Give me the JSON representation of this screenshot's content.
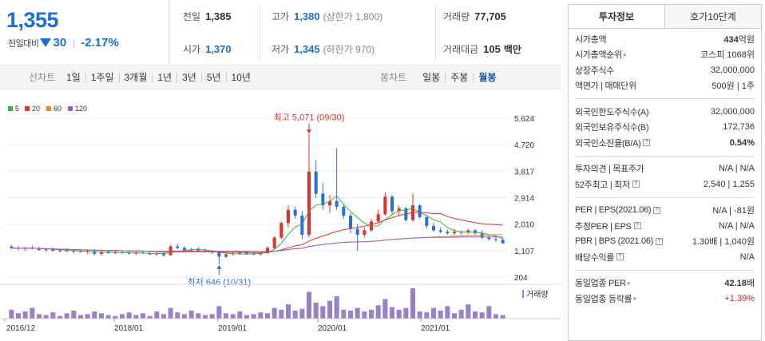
{
  "quote": {
    "price": "1,355",
    "change_label": "전일대비",
    "change": "30",
    "change_pct": "-2.17%",
    "cells": {
      "prev_close": {
        "k": "전일",
        "v": "1,385"
      },
      "high": {
        "k": "고가",
        "v": "1,380",
        "n": "(상한가 1,800)"
      },
      "volume": {
        "k": "거래량",
        "v": "77,705"
      },
      "open": {
        "k": "시가",
        "v": "1,370"
      },
      "low": {
        "k": "저가",
        "v": "1,345",
        "n": "(하한가 970)"
      },
      "amount": {
        "k": "거래대금",
        "v": "105",
        "n": "백만"
      }
    }
  },
  "toolbar": {
    "line_label": "선차트",
    "line_items": [
      "1일",
      "1주일",
      "3개월",
      "1년",
      "3년",
      "5년",
      "10년"
    ],
    "candle_label": "봉차트",
    "candle_items": [
      "일봉",
      "주봉",
      "월봉"
    ],
    "active_candle": 2
  },
  "chart_data": {
    "type": "candlestick",
    "legend": [
      {
        "name": "5",
        "color": "#3cb043"
      },
      {
        "name": "20",
        "color": "#e0302d"
      },
      {
        "name": "60",
        "color": "#f08a1c"
      },
      {
        "name": "120",
        "color": "#9b59d0"
      }
    ],
    "y_ticks": [
      "5,624",
      "4,720",
      "3,817",
      "2,914",
      "2,010",
      "1,107",
      "204"
    ],
    "ylim": [
      204,
      5624
    ],
    "x_ticks": [
      "2016/12",
      "2018/01",
      "2019/01",
      "2020/01",
      "2021/01"
    ],
    "annotations": {
      "high": "최고 5,071 (09/30)",
      "low": "최저 646 (10/31)"
    },
    "volume_label": "거래량",
    "up_color": "#e0302d",
    "down_color": "#2a6fd6",
    "candles": [
      [
        1250,
        1300,
        1150,
        1200
      ],
      [
        1200,
        1260,
        1120,
        1170
      ],
      [
        1170,
        1230,
        1100,
        1210
      ],
      [
        1210,
        1280,
        1150,
        1180
      ],
      [
        1180,
        1240,
        1100,
        1130
      ],
      [
        1130,
        1190,
        1060,
        1150
      ],
      [
        1150,
        1220,
        1080,
        1100
      ],
      [
        1100,
        1160,
        1040,
        1120
      ],
      [
        1120,
        1190,
        1060,
        1080
      ],
      [
        1080,
        1140,
        1020,
        1100
      ],
      [
        1100,
        1170,
        1040,
        1060
      ],
      [
        1060,
        1130,
        1000,
        1090
      ],
      [
        1090,
        1150,
        950,
        1000
      ],
      [
        1000,
        1090,
        940,
        1070
      ],
      [
        1070,
        1130,
        1000,
        1020
      ],
      [
        1020,
        1100,
        980,
        1060
      ],
      [
        1060,
        1120,
        1000,
        1030
      ],
      [
        1030,
        1090,
        980,
        1000
      ],
      [
        1000,
        1080,
        960,
        1040
      ],
      [
        1040,
        1100,
        990,
        1010
      ],
      [
        1010,
        1070,
        960,
        980
      ],
      [
        980,
        1050,
        930,
        1020
      ],
      [
        1020,
        1090,
        900,
        950
      ],
      [
        950,
        1300,
        930,
        1250
      ],
      [
        1250,
        1320,
        1150,
        1200
      ],
      [
        1200,
        1260,
        1080,
        1120
      ],
      [
        1120,
        1200,
        1050,
        1160
      ],
      [
        1160,
        1230,
        1080,
        1100
      ],
      [
        1100,
        1180,
        1040,
        1070
      ],
      [
        1070,
        1130,
        1000,
        1050
      ],
      [
        1050,
        1100,
        646,
        900
      ],
      [
        900,
        1020,
        850,
        980
      ],
      [
        980,
        1050,
        930,
        1010
      ],
      [
        1010,
        1080,
        960,
        1040
      ],
      [
        1040,
        1110,
        990,
        1000
      ],
      [
        1000,
        1060,
        950,
        980
      ],
      [
        980,
        1050,
        940,
        1020
      ],
      [
        1020,
        1250,
        1000,
        1200
      ],
      [
        1200,
        1600,
        1150,
        1550
      ],
      [
        1550,
        2100,
        1500,
        2050
      ],
      [
        2050,
        2650,
        1900,
        2500
      ],
      [
        2500,
        2600,
        2200,
        2300
      ],
      [
        2300,
        2450,
        1500,
        1650
      ],
      [
        1650,
        5071,
        1550,
        3800
      ],
      [
        3800,
        4200,
        2900,
        3050
      ],
      [
        3050,
        3400,
        2500,
        2650
      ],
      [
        2650,
        3000,
        2400,
        2800
      ],
      [
        2800,
        4600,
        2500,
        2600
      ],
      [
        2600,
        2700,
        2200,
        2300
      ],
      [
        2300,
        2400,
        1700,
        1850
      ],
      [
        1850,
        2000,
        1100,
        1650
      ],
      [
        1650,
        1900,
        1550,
        1800
      ],
      [
        1800,
        2200,
        1750,
        2100
      ],
      [
        2100,
        2500,
        2050,
        2350
      ],
      [
        2350,
        3100,
        2300,
        2950
      ],
      [
        2950,
        3000,
        2350,
        2450
      ],
      [
        2450,
        2650,
        2300,
        2550
      ],
      [
        2550,
        2600,
        2100,
        2150
      ],
      [
        2150,
        3050,
        2100,
        2650
      ],
      [
        2650,
        2700,
        2200,
        2250
      ],
      [
        2250,
        2300,
        1850,
        1950
      ],
      [
        1950,
        2050,
        1750,
        1800
      ],
      [
        1800,
        1900,
        1700,
        1750
      ],
      [
        1750,
        1820,
        1650,
        1700
      ],
      [
        1700,
        1850,
        1650,
        1750
      ],
      [
        1750,
        1800,
        1650,
        1720
      ],
      [
        1720,
        1850,
        1680,
        1800
      ],
      [
        1800,
        1850,
        1650,
        1700
      ],
      [
        1700,
        1800,
        1500,
        1550
      ],
      [
        1550,
        1650,
        1450,
        1500
      ],
      [
        1500,
        1600,
        1400,
        1480
      ],
      [
        1480,
        1550,
        1340,
        1355
      ]
    ],
    "volume": [
      10,
      6,
      8,
      12,
      5,
      4,
      7,
      3,
      6,
      9,
      4,
      5,
      8,
      6,
      4,
      3,
      5,
      7,
      4,
      6,
      3,
      8,
      5,
      12,
      7,
      5,
      9,
      6,
      4,
      5,
      14,
      6,
      5,
      8,
      4,
      5,
      7,
      6,
      12,
      10,
      16,
      9,
      11,
      30,
      18,
      14,
      20,
      25,
      10,
      9,
      12,
      8,
      10,
      15,
      22,
      13,
      10,
      12,
      34,
      8,
      7,
      12,
      9,
      14,
      6,
      10,
      16,
      8,
      7,
      14,
      5,
      4
    ]
  },
  "side": {
    "tabs": [
      "투자정보",
      "호가10단계"
    ],
    "group1": [
      {
        "k": "시가총액",
        "v": "434",
        "u": "억원",
        "bold": true
      },
      {
        "k": "시가총액순위",
        "v": "코스피 1068위",
        "arrow": true
      },
      {
        "k": "상장주식수",
        "v": "32,000,000"
      },
      {
        "k": "액면가 | 매매단위",
        "v": "500원 | 1주"
      }
    ],
    "group2": [
      {
        "k": "외국인한도주식수(A)",
        "v": "32,000,000"
      },
      {
        "k": "외국인보유주식수(B)",
        "v": "172,736"
      },
      {
        "k": "외국인소진율(B/A)",
        "v": "0.54%",
        "bold": true,
        "qm": true
      }
    ],
    "group3": [
      {
        "k": "투자의견 | 목표주가",
        "v": "N/A | N/A"
      },
      {
        "k": "52주최고 | 최저",
        "v": "2,540 | 1,255",
        "qm": true
      }
    ],
    "group4": [
      {
        "k": "PER | EPS(2021.06)",
        "v": "N/A | -81원",
        "qm": true
      },
      {
        "k": "추정PER | EPS",
        "v": "N/A | N/A",
        "qm": true
      },
      {
        "k": "PBR | BPS (2021.06)",
        "v": "1.30배 | 1,040원",
        "qm": true
      },
      {
        "k": "배당수익률",
        "v": "N/A",
        "qm": true
      }
    ],
    "group5": [
      {
        "k": "동일업종 PER",
        "v": "42.18",
        "u": "배",
        "bold": true,
        "arrow": true
      },
      {
        "k": "동일업종 등락률",
        "v": "+1.39%",
        "red": true,
        "arrow": true
      }
    ]
  }
}
